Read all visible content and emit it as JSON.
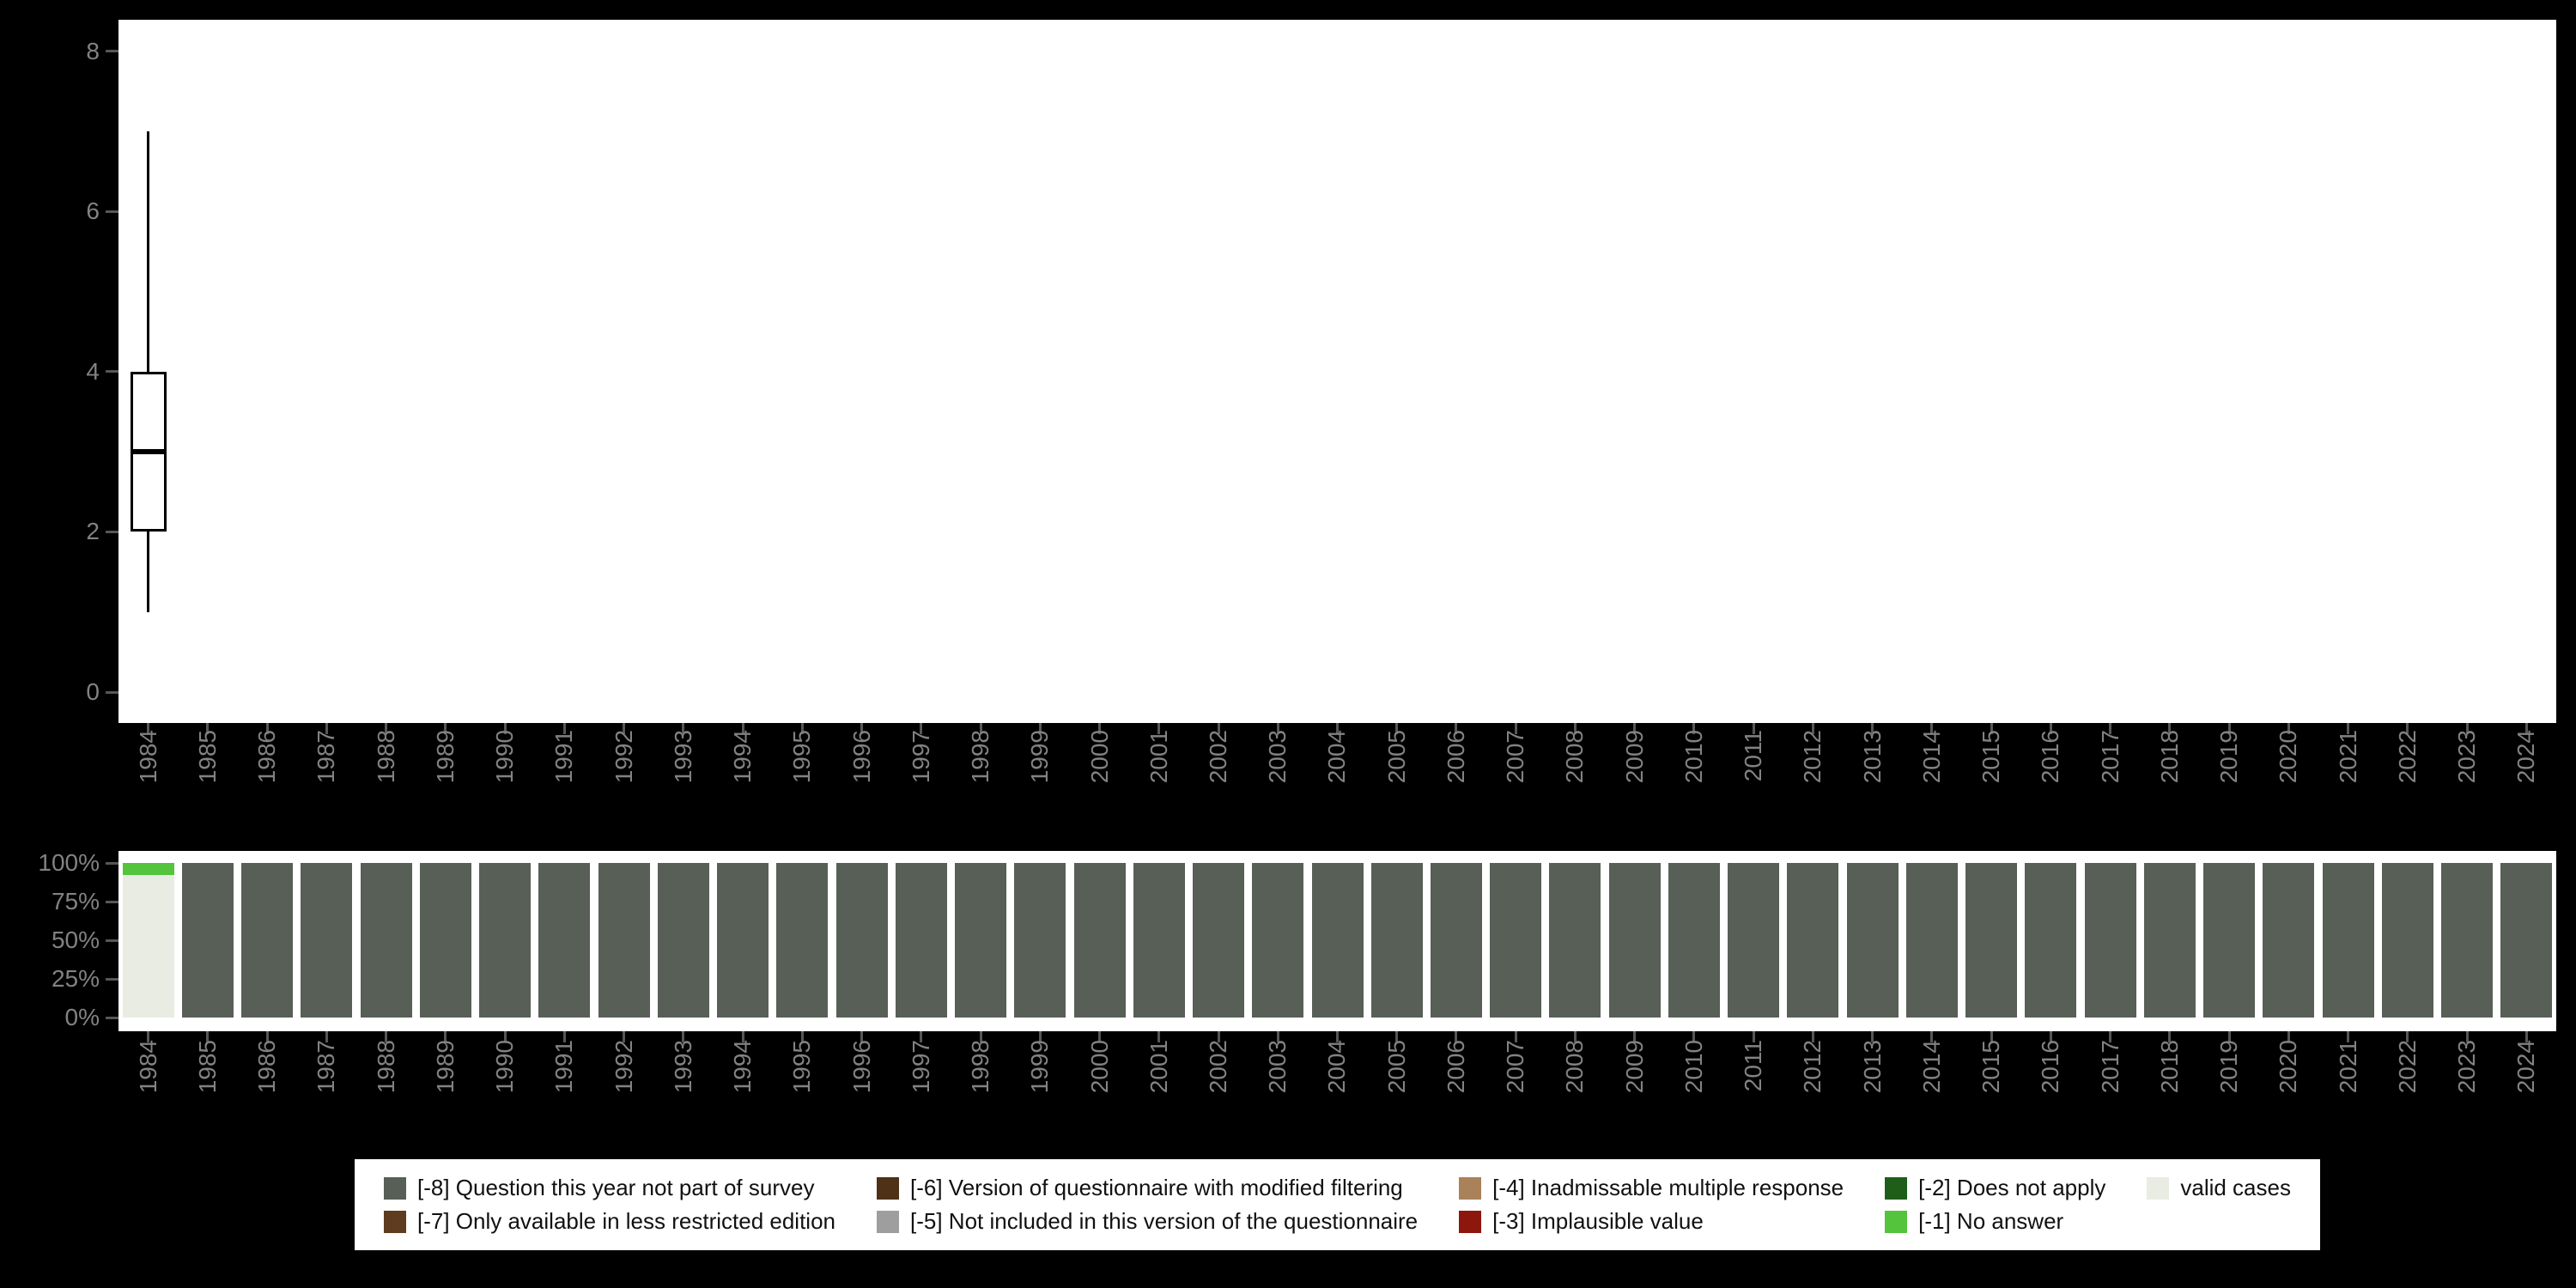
{
  "colors": {
    "background": "#000000",
    "panel": "#ffffff",
    "axis_text": "#828282",
    "tick_mark": "#575757",
    "boxplot_stroke": "#000000"
  },
  "chart_data": [
    {
      "type": "boxplot",
      "title": "",
      "xlabel": "",
      "ylabel": "",
      "ylim": [
        0,
        8
      ],
      "yticks": [
        0,
        2,
        4,
        6,
        8
      ],
      "grid": false,
      "categories": [
        "1984",
        "1985",
        "1986",
        "1987",
        "1988",
        "1989",
        "1990",
        "1991",
        "1992",
        "1993",
        "1994",
        "1995",
        "1996",
        "1997",
        "1998",
        "1999",
        "2000",
        "2001",
        "2002",
        "2003",
        "2004",
        "2005",
        "2006",
        "2007",
        "2008",
        "2009",
        "2010",
        "2011",
        "2012",
        "2013",
        "2014",
        "2015",
        "2016",
        "2017",
        "2018",
        "2019",
        "2020",
        "2021",
        "2022",
        "2023",
        "2024"
      ],
      "series": [
        {
          "category": "1984",
          "lower_whisker": 1,
          "q1": 2,
          "median": 3,
          "q3": 4,
          "upper_whisker": 7
        }
      ]
    },
    {
      "type": "bar",
      "subtype": "stacked-percent",
      "title": "",
      "xlabel": "",
      "ylabel": "",
      "ylim": [
        0,
        100
      ],
      "yticks_labels": [
        "0%",
        "25%",
        "50%",
        "75%",
        "100%"
      ],
      "grid": false,
      "categories": [
        "1984",
        "1985",
        "1986",
        "1987",
        "1988",
        "1989",
        "1990",
        "1991",
        "1992",
        "1993",
        "1994",
        "1995",
        "1996",
        "1997",
        "1998",
        "1999",
        "2000",
        "2001",
        "2002",
        "2003",
        "2004",
        "2005",
        "2006",
        "2007",
        "2008",
        "2009",
        "2010",
        "2011",
        "2012",
        "2013",
        "2014",
        "2015",
        "2016",
        "2017",
        "2018",
        "2019",
        "2020",
        "2021",
        "2022",
        "2023",
        "2024"
      ],
      "series": [
        {
          "name": "valid cases",
          "color": "#e9ece3",
          "values": [
            92,
            0,
            0,
            0,
            0,
            0,
            0,
            0,
            0,
            0,
            0,
            0,
            0,
            0,
            0,
            0,
            0,
            0,
            0,
            0,
            0,
            0,
            0,
            0,
            0,
            0,
            0,
            0,
            0,
            0,
            0,
            0,
            0,
            0,
            0,
            0,
            0,
            0,
            0,
            0,
            0
          ]
        },
        {
          "name": "[-1] No answer",
          "color": "#53c43b",
          "values": [
            8,
            0,
            0,
            0,
            0,
            0,
            0,
            0,
            0,
            0,
            0,
            0,
            0,
            0,
            0,
            0,
            0,
            0,
            0,
            0,
            0,
            0,
            0,
            0,
            0,
            0,
            0,
            0,
            0,
            0,
            0,
            0,
            0,
            0,
            0,
            0,
            0,
            0,
            0,
            0,
            0
          ]
        },
        {
          "name": "[-8] Question this year not part of survey",
          "color": "#575f56",
          "values": [
            0,
            100,
            100,
            100,
            100,
            100,
            100,
            100,
            100,
            100,
            100,
            100,
            100,
            100,
            100,
            100,
            100,
            100,
            100,
            100,
            100,
            100,
            100,
            100,
            100,
            100,
            100,
            100,
            100,
            100,
            100,
            100,
            100,
            100,
            100,
            100,
            100,
            100,
            100,
            100,
            100
          ]
        }
      ],
      "legend_position": "bottom"
    }
  ],
  "legend": {
    "items": [
      {
        "label": "[-8] Question this year not part of survey",
        "color": "#575f56"
      },
      {
        "label": "[-7] Only available in less restricted edition",
        "color": "#5f3c1f"
      },
      {
        "label": "[-6] Version of questionnaire with modified filtering",
        "color": "#4e3117"
      },
      {
        "label": "[-5] Not included in this version of the questionnaire",
        "color": "#9e9e9e"
      },
      {
        "label": "[-4] Inadmissable multiple response",
        "color": "#a9815a"
      },
      {
        "label": "[-3] Implausible value",
        "color": "#8e170d"
      },
      {
        "label": "[-2] Does not apply",
        "color": "#1e5e1a"
      },
      {
        "label": "[-1] No answer",
        "color": "#53c43b"
      },
      {
        "label": "valid cases",
        "color": "#e9ece3"
      }
    ]
  }
}
